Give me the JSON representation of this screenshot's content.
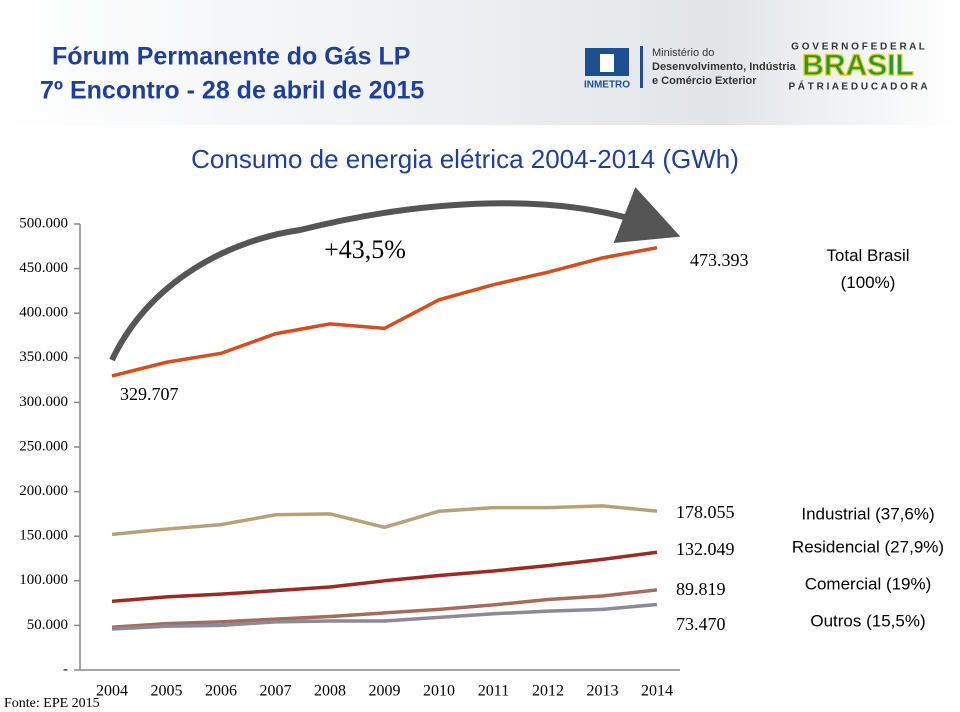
{
  "header": {
    "title": "Fórum Permanente do Gás LP",
    "subtitle": "7º Encontro - 28 de abril de 2015",
    "logos": {
      "inmetro": "INMETRO",
      "ministry": [
        "Ministério do",
        "Desenvolvimento, Indústria",
        "e Comércio Exterior"
      ],
      "government": "G O V E R N O   F E D E R A L",
      "country": "BRASIL",
      "motto": "P Á T R I A   E D U C A D O R A"
    }
  },
  "chart_data": {
    "type": "line",
    "title": "Consumo de energia elétrica 2004-2014 (GWh)",
    "categories": [
      "2004",
      "2005",
      "2006",
      "2007",
      "2008",
      "2009",
      "2010",
      "2011",
      "2012",
      "2013",
      "2014"
    ],
    "series": [
      {
        "name": "Total Brasil (100%)",
        "color": "#d24f1f",
        "values": [
          329707,
          345000,
          355000,
          377000,
          388000,
          383000,
          415000,
          432000,
          446000,
          462000,
          473393
        ],
        "value_labels": [
          "329.707",
          null,
          null,
          null,
          null,
          null,
          null,
          null,
          null,
          null,
          "473.393"
        ]
      },
      {
        "name": "Industrial (37,6%)",
        "color": "#b5a17a",
        "values": [
          152000,
          158000,
          163000,
          174000,
          175000,
          160000,
          178000,
          182000,
          182000,
          184000,
          178055
        ],
        "value_labels": [
          null,
          null,
          null,
          null,
          null,
          null,
          null,
          null,
          null,
          null,
          "178.055"
        ]
      },
      {
        "name": "Residencial (27,9%)",
        "color": "#9b2b22",
        "values": [
          77000,
          82000,
          85000,
          89000,
          93000,
          100000,
          106000,
          111000,
          117000,
          124000,
          132049
        ],
        "value_labels": [
          null,
          null,
          null,
          null,
          null,
          null,
          null,
          null,
          null,
          null,
          "132.049"
        ]
      },
      {
        "name": "Comercial (19%)",
        "color": "#a76b5c",
        "values": [
          48000,
          52000,
          54000,
          57000,
          60000,
          64000,
          68000,
          73000,
          79000,
          83000,
          89819
        ],
        "value_labels": [
          null,
          null,
          null,
          null,
          null,
          null,
          null,
          null,
          null,
          null,
          "89.819"
        ]
      },
      {
        "name": "Outros (15,5%)",
        "color": "#8b8a97",
        "values": [
          46000,
          49000,
          50000,
          54000,
          55000,
          55000,
          59000,
          63000,
          66000,
          68000,
          73470
        ],
        "value_labels": [
          null,
          null,
          null,
          null,
          null,
          null,
          null,
          null,
          null,
          null,
          "73.470"
        ]
      }
    ],
    "ylim": [
      0,
      500000
    ],
    "yticks": [
      {
        "value": 0,
        "label": "-"
      },
      {
        "value": 50000,
        "label": "50.000"
      },
      {
        "value": 100000,
        "label": "100.000"
      },
      {
        "value": 150000,
        "label": "150.000"
      },
      {
        "value": 200000,
        "label": "200.000"
      },
      {
        "value": 250000,
        "label": "250.000"
      },
      {
        "value": 300000,
        "label": "300.000"
      },
      {
        "value": 350000,
        "label": "350.000"
      },
      {
        "value": 400000,
        "label": "400.000"
      },
      {
        "value": 450000,
        "label": "450.000"
      },
      {
        "value": 500000,
        "label": "500.000"
      }
    ],
    "annotation": "+43,5%",
    "source": "Fonte: EPE 2015"
  }
}
